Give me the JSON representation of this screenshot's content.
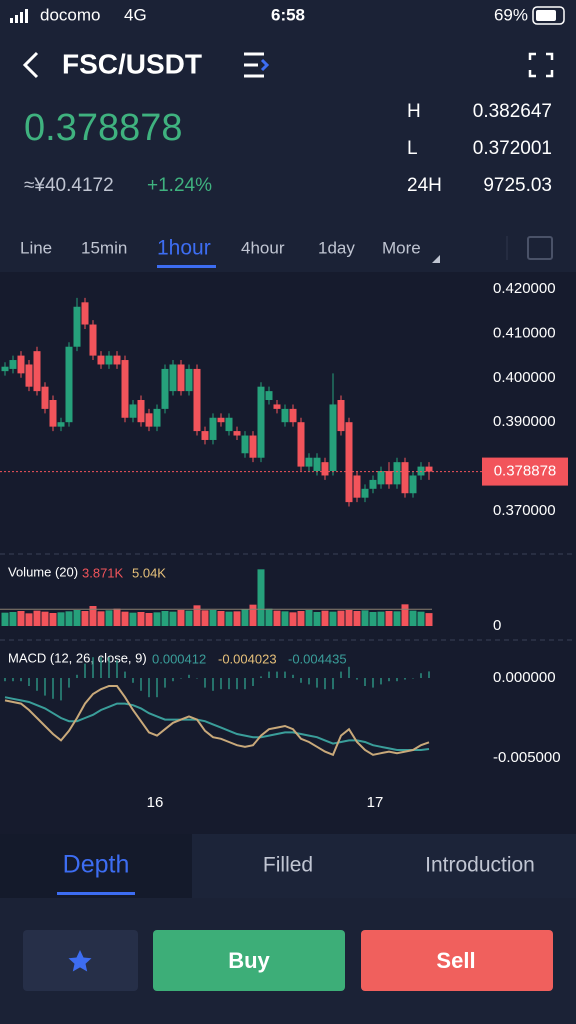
{
  "status_bar": {
    "carrier": "docomo",
    "network": "4G",
    "time": "6:58",
    "battery": "69%"
  },
  "header": {
    "pair": "FSC/USDT",
    "price": "0.378878",
    "cny": "≈¥40.4172",
    "change": "+1.24%",
    "stats": [
      {
        "label": "H",
        "value": "0.382647"
      },
      {
        "label": "L",
        "value": "0.372001"
      },
      {
        "label": "24H",
        "value": "9725.03"
      }
    ]
  },
  "intervals": {
    "items": [
      "Line",
      "15min",
      "1hour",
      "4hour",
      "1day",
      "More"
    ],
    "selected": 2
  },
  "chart_data": {
    "type": "candlestick",
    "up_color": "#26a17b",
    "down_color": "#f2545b",
    "open": [
      0.4015,
      0.402,
      0.405,
      0.403,
      0.406,
      0.398,
      0.395,
      0.389,
      0.39,
      0.407,
      0.417,
      0.412,
      0.405,
      0.403,
      0.405,
      0.404,
      0.391,
      0.395,
      0.392,
      0.389,
      0.393,
      0.397,
      0.403,
      0.397,
      0.402,
      0.388,
      0.386,
      0.391,
      0.388,
      0.388,
      0.383,
      0.387,
      0.382,
      0.395,
      0.394,
      0.39,
      0.393,
      0.39,
      0.38,
      0.379,
      0.381,
      0.379,
      0.395,
      0.39,
      0.378,
      0.373,
      0.375,
      0.376,
      0.379,
      0.376,
      0.381,
      0.374,
      0.378,
      0.38
    ],
    "high": [
      0.4035,
      0.405,
      0.406,
      0.404,
      0.407,
      0.399,
      0.396,
      0.391,
      0.408,
      0.418,
      0.418,
      0.413,
      0.406,
      0.406,
      0.406,
      0.405,
      0.395,
      0.396,
      0.393,
      0.394,
      0.403,
      0.404,
      0.404,
      0.403,
      0.403,
      0.389,
      0.392,
      0.392,
      0.392,
      0.389,
      0.388,
      0.388,
      0.399,
      0.398,
      0.395,
      0.394,
      0.394,
      0.391,
      0.383,
      0.383,
      0.382,
      0.401,
      0.396,
      0.391,
      0.379,
      0.376,
      0.378,
      0.38,
      0.381,
      0.382,
      0.382,
      0.379,
      0.381,
      0.381
    ],
    "low": [
      0.4005,
      0.401,
      0.4,
      0.397,
      0.396,
      0.392,
      0.388,
      0.388,
      0.389,
      0.406,
      0.411,
      0.404,
      0.402,
      0.402,
      0.402,
      0.39,
      0.39,
      0.389,
      0.388,
      0.388,
      0.392,
      0.396,
      0.396,
      0.396,
      0.387,
      0.385,
      0.385,
      0.389,
      0.387,
      0.386,
      0.382,
      0.381,
      0.381,
      0.394,
      0.392,
      0.389,
      0.389,
      0.379,
      0.379,
      0.378,
      0.377,
      0.378,
      0.387,
      0.371,
      0.372,
      0.372,
      0.374,
      0.375,
      0.375,
      0.375,
      0.373,
      0.373,
      0.377,
      0.377
    ],
    "close": [
      0.4025,
      0.404,
      0.401,
      0.398,
      0.397,
      0.393,
      0.389,
      0.39,
      0.407,
      0.416,
      0.412,
      0.405,
      0.403,
      0.405,
      0.403,
      0.391,
      0.394,
      0.39,
      0.389,
      0.393,
      0.402,
      0.403,
      0.397,
      0.402,
      0.388,
      0.386,
      0.391,
      0.39,
      0.391,
      0.387,
      0.387,
      0.382,
      0.398,
      0.397,
      0.393,
      0.393,
      0.39,
      0.38,
      0.382,
      0.382,
      0.378,
      0.394,
      0.388,
      0.372,
      0.373,
      0.375,
      0.377,
      0.379,
      0.376,
      0.381,
      0.374,
      0.378,
      0.38,
      0.378878
    ],
    "ylim": [
      0.37,
      0.42
    ],
    "yticks": [
      {
        "value": 0.42,
        "label": "0.420000"
      },
      {
        "value": 0.41,
        "label": "0.410000"
      },
      {
        "value": 0.4,
        "label": "0.400000"
      },
      {
        "value": 0.39,
        "label": "0.390000"
      },
      {
        "value": 0.37,
        "label": "0.370000"
      }
    ],
    "xticks": [
      {
        "value": 18.75,
        "label": "16"
      },
      {
        "value": 46.25,
        "label": "17"
      }
    ],
    "volume": {
      "name": "Volume (20)",
      "color_up": "#26a17b",
      "color_down": "#f2545b",
      "values": [
        4000,
        4200,
        4500,
        3800,
        4600,
        4300,
        3900,
        4100,
        4400,
        4800,
        4500,
        6000,
        4400,
        4700,
        5200,
        4300,
        4000,
        4200,
        3900,
        4100,
        4500,
        4300,
        4800,
        4600,
        6200,
        4700,
        4800,
        4500,
        4300,
        4400,
        5000,
        6400,
        17000,
        5200,
        4600,
        4400,
        4100,
        4500,
        4800,
        4200,
        4600,
        4300,
        4600,
        4800,
        4500,
        4700,
        4200,
        4300,
        4500,
        4400,
        6500,
        4600,
        4300,
        3871
      ],
      "value_label": "3.871K",
      "ma": {
        "value": 5040,
        "label": "5.04K"
      },
      "ylim": [
        0,
        18000
      ],
      "yticks": [
        0
      ]
    },
    "macd": {
      "name": "MACD (12, 26, close, 9)",
      "ylim": [
        -0.0075,
        0.001
      ],
      "yticks": [
        {
          "value": 0,
          "label": "0.000000"
        },
        {
          "value": -0.005,
          "label": "-0.005000"
        }
      ],
      "hist": [
        -0.0002,
        -0.0002,
        -0.0002,
        -0.0005,
        -0.0008,
        -0.0011,
        -0.0013,
        -0.0014,
        -0.0006,
        0.0002,
        0.0009,
        0.0013,
        0.0013,
        0.0013,
        0.0011,
        0.0004,
        -0.0003,
        -0.0008,
        -0.0012,
        -0.0012,
        -0.0006,
        -0.0002,
        0,
        0.0002,
        0,
        -0.0006,
        -0.0008,
        -0.0007,
        -0.0007,
        -0.0007,
        -0.0007,
        -0.0005,
        0.0001,
        0.0004,
        0.0004,
        0.0004,
        0.0002,
        -0.0003,
        -0.0004,
        -0.0006,
        -0.0007,
        -0.0007,
        0.0004,
        0.0007,
        -0.0001,
        -0.0005,
        -0.0006,
        -0.0004,
        -0.0002,
        -0.0002,
        -0.0001,
        0,
        0.0003,
        0.000412
      ],
      "dif": [
        -0.0014,
        -0.0015,
        -0.0016,
        -0.002,
        -0.0025,
        -0.003,
        -0.0035,
        -0.0039,
        -0.0033,
        -0.0025,
        -0.0016,
        -0.001,
        -0.0007,
        -0.0005,
        -0.0005,
        -0.0012,
        -0.002,
        -0.0027,
        -0.0034,
        -0.0036,
        -0.0032,
        -0.0028,
        -0.0026,
        -0.0024,
        -0.0026,
        -0.0033,
        -0.0037,
        -0.0038,
        -0.004,
        -0.0042,
        -0.0043,
        -0.0042,
        -0.0036,
        -0.0032,
        -0.0031,
        -0.003,
        -0.0032,
        -0.0038,
        -0.004,
        -0.0043,
        -0.0046,
        -0.0048,
        -0.0036,
        -0.0032,
        -0.004,
        -0.0045,
        -0.0048,
        -0.0047,
        -0.0046,
        -0.0047,
        -0.0046,
        -0.0045,
        -0.0042,
        -0.004023
      ],
      "dea": [
        -0.0012,
        -0.0013,
        -0.0014,
        -0.0015,
        -0.0017,
        -0.0019,
        -0.0022,
        -0.0025,
        -0.0027,
        -0.0027,
        -0.0025,
        -0.0023,
        -0.002,
        -0.0018,
        -0.0016,
        -0.0016,
        -0.0017,
        -0.0019,
        -0.0022,
        -0.0024,
        -0.0026,
        -0.0026,
        -0.0026,
        -0.0026,
        -0.0026,
        -0.0027,
        -0.0029,
        -0.0031,
        -0.0033,
        -0.0035,
        -0.0036,
        -0.0037,
        -0.0037,
        -0.0036,
        -0.0035,
        -0.0034,
        -0.0034,
        -0.0035,
        -0.0036,
        -0.0037,
        -0.0039,
        -0.0041,
        -0.004,
        -0.0039,
        -0.0039,
        -0.004,
        -0.0042,
        -0.0043,
        -0.0044,
        -0.0045,
        -0.0045,
        -0.0045,
        -0.0045,
        -0.004435
      ],
      "hist_color": "#2b8f80",
      "dif_color": "#c9a97a",
      "dea_color": "#3a9e9a"
    }
  },
  "tabs": {
    "items": [
      "Depth",
      "Filled",
      "Introduction"
    ],
    "selected": 0
  },
  "actions": {
    "buy": "Buy",
    "sell": "Sell"
  }
}
